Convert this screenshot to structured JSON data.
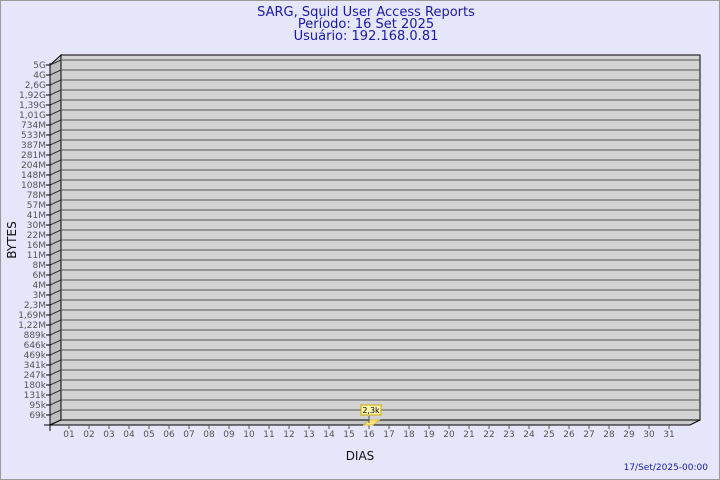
{
  "chart_data": {
    "type": "bar",
    "title": "SARG, Squid User Access Reports",
    "subtitle_lines": [
      "Período: 16 Set 2025",
      "Usuário: 192.168.0.81"
    ],
    "xlabel": "DIAS",
    "ylabel": "BYTES",
    "y_scale": "log",
    "y_tick_labels": [
      "5G",
      "4G",
      "2,6G",
      "1,92G",
      "1,39G",
      "1,01G",
      "734M",
      "533M",
      "387M",
      "281M",
      "204M",
      "148M",
      "108M",
      "78M",
      "57M",
      "41M",
      "30M",
      "22M",
      "16M",
      "11M",
      "8M",
      "6M",
      "4M",
      "3M",
      "2,3M",
      "1,69M",
      "1,22M",
      "889k",
      "646k",
      "469k",
      "341k",
      "247k",
      "180k",
      "131k",
      "95k",
      "69k"
    ],
    "categories": [
      "01",
      "02",
      "03",
      "04",
      "05",
      "06",
      "07",
      "08",
      "09",
      "10",
      "11",
      "12",
      "13",
      "14",
      "15",
      "16",
      "17",
      "18",
      "19",
      "20",
      "21",
      "22",
      "23",
      "24",
      "25",
      "26",
      "27",
      "28",
      "29",
      "30",
      "31"
    ],
    "bars": [
      {
        "category": "16",
        "value": 2300,
        "label": "2,3k"
      }
    ],
    "grid": true,
    "colors": {
      "background": "#e6e6fa",
      "plot": "#d3d3d3",
      "bar": "#ffe680",
      "title": "#1a1aa6"
    }
  },
  "footer": {
    "timestamp": "17/Set/2025-00:00"
  }
}
